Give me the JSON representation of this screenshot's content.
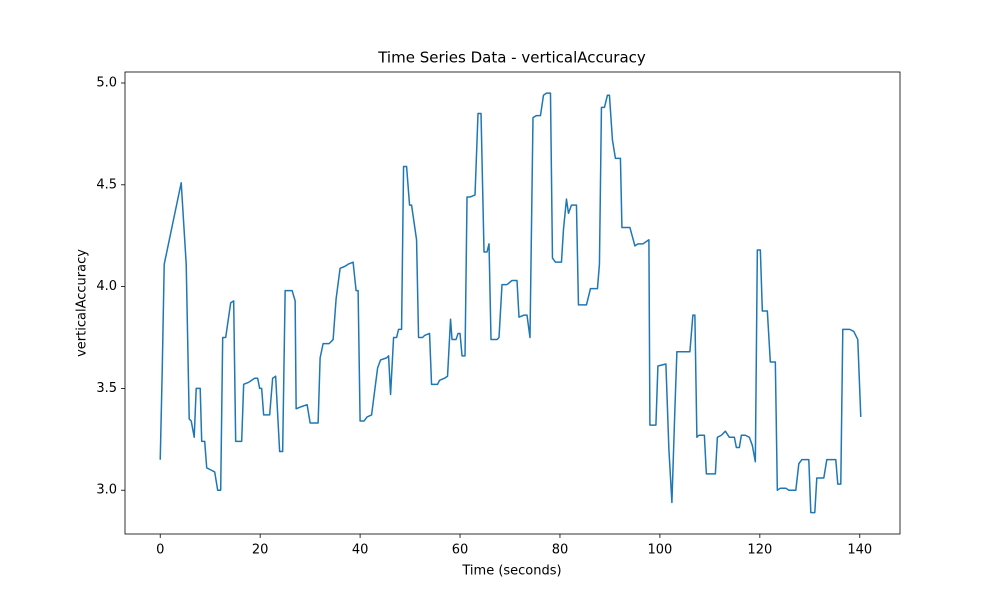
{
  "chart_data": {
    "type": "line",
    "title": "Time Series Data - verticalAccuracy",
    "xlabel": "Time (seconds)",
    "ylabel": "verticalAccuracy",
    "x": [
      0,
      0.4,
      0.8,
      4.2,
      5.2,
      5.8,
      6.2,
      6.8,
      7.2,
      8.0,
      8.3,
      8.9,
      9.3,
      10.1,
      10.9,
      11.5,
      12.1,
      12.5,
      13.1,
      14.1,
      14.7,
      15.1,
      16.3,
      16.7,
      17.7,
      18.3,
      18.9,
      19.5,
      19.9,
      20.3,
      20.7,
      21.9,
      22.5,
      23.1,
      23.9,
      24.5,
      25.0,
      25.8,
      26.4,
      27.0,
      27.2,
      28.2,
      29.4,
      30.0,
      31.6,
      32.0,
      32.6,
      33.8,
      34.6,
      35.2,
      36.0,
      37.0,
      37.6,
      38.6,
      39.2,
      39.6,
      40.0,
      40.8,
      41.4,
      42.3,
      43.5,
      44.1,
      45.3,
      45.7,
      46.1,
      46.7,
      47.3,
      47.7,
      48.3,
      48.7,
      49.3,
      49.9,
      50.3,
      51.3,
      51.7,
      52.5,
      52.9,
      53.9,
      54.3,
      55.5,
      55.9,
      56.9,
      57.5,
      58.1,
      58.4,
      59.2,
      59.6,
      60.0,
      60.4,
      61.0,
      61.4,
      62.0,
      63.0,
      63.6,
      64.2,
      64.8,
      65.4,
      65.8,
      66.2,
      67.4,
      67.8,
      68.4,
      69.4,
      70.4,
      71.4,
      71.8,
      72.8,
      73.4,
      74.0,
      74.6,
      75.3,
      76.1,
      76.7,
      77.3,
      78.1,
      78.5,
      79.1,
      80.3,
      80.7,
      81.3,
      81.7,
      82.3,
      83.3,
      83.7,
      85.3,
      86.1,
      86.7,
      87.5,
      87.9,
      88.3,
      88.9,
      89.5,
      89.9,
      90.5,
      91.1,
      92.1,
      92.4,
      93.0,
      94.0,
      95.0,
      95.6,
      96.6,
      97.8,
      98.0,
      99.2,
      99.6,
      101.2,
      101.8,
      102.4,
      103.0,
      103.4,
      106.0,
      106.6,
      107.0,
      107.4,
      107.8,
      108.9,
      109.3,
      111.1,
      111.5,
      112.3,
      113.1,
      113.9,
      114.9,
      115.3,
      115.9,
      116.3,
      117.1,
      117.9,
      118.5,
      119.1,
      119.5,
      120.1,
      120.5,
      121.5,
      122.1,
      123.1,
      123.5,
      124.1,
      125.2,
      125.8,
      127.2,
      127.8,
      128.4,
      129.8,
      130.2,
      131.0,
      131.4,
      132.8,
      133.4,
      135.2,
      135.6,
      136.2,
      136.6,
      138.0,
      138.8,
      139.6,
      140.2
    ],
    "series": [
      {
        "name": "verticalAccuracy",
        "color": "#1f77b4",
        "values": [
          3.15,
          3.59,
          4.11,
          4.51,
          4.11,
          3.35,
          3.34,
          3.26,
          3.5,
          3.5,
          3.24,
          3.24,
          3.11,
          3.1,
          3.09,
          3.0,
          3.0,
          3.75,
          3.75,
          3.92,
          3.93,
          3.24,
          3.24,
          3.52,
          3.53,
          3.54,
          3.55,
          3.55,
          3.5,
          3.5,
          3.37,
          3.37,
          3.55,
          3.56,
          3.19,
          3.19,
          3.98,
          3.98,
          3.98,
          3.93,
          3.4,
          3.41,
          3.42,
          3.33,
          3.33,
          3.65,
          3.72,
          3.72,
          3.74,
          3.94,
          4.09,
          4.1,
          4.11,
          4.12,
          3.98,
          3.98,
          3.34,
          3.34,
          3.36,
          3.37,
          3.6,
          3.64,
          3.65,
          3.66,
          3.47,
          3.75,
          3.75,
          3.79,
          3.79,
          4.59,
          4.59,
          4.4,
          4.4,
          4.23,
          3.75,
          3.75,
          3.76,
          3.77,
          3.52,
          3.52,
          3.54,
          3.55,
          3.56,
          3.84,
          3.74,
          3.74,
          3.77,
          3.77,
          3.66,
          3.66,
          4.44,
          4.44,
          4.45,
          4.85,
          4.85,
          4.17,
          4.17,
          4.21,
          3.74,
          3.74,
          3.75,
          4.01,
          4.01,
          4.03,
          4.03,
          3.85,
          3.86,
          3.86,
          3.75,
          4.83,
          4.84,
          4.84,
          4.94,
          4.95,
          4.95,
          4.14,
          4.12,
          4.12,
          4.28,
          4.43,
          4.36,
          4.4,
          4.4,
          3.91,
          3.91,
          3.99,
          3.99,
          3.99,
          4.11,
          4.88,
          4.88,
          4.94,
          4.94,
          4.72,
          4.63,
          4.63,
          4.29,
          4.29,
          4.29,
          4.2,
          4.21,
          4.21,
          4.23,
          3.32,
          3.32,
          3.61,
          3.62,
          3.2,
          2.94,
          3.4,
          3.68,
          3.68,
          3.86,
          3.86,
          3.26,
          3.27,
          3.27,
          3.08,
          3.08,
          3.26,
          3.27,
          3.29,
          3.26,
          3.26,
          3.21,
          3.21,
          3.27,
          3.27,
          3.26,
          3.22,
          3.14,
          4.18,
          4.18,
          3.88,
          3.88,
          3.63,
          3.63,
          3.0,
          3.01,
          3.01,
          3.0,
          3.0,
          3.13,
          3.15,
          3.15,
          2.89,
          2.89,
          3.06,
          3.06,
          3.15,
          3.15,
          3.03,
          3.03,
          3.79,
          3.79,
          3.78,
          3.74,
          3.36
        ]
      }
    ],
    "xlim": [
      -7.05,
      148.05
    ],
    "xticks": [
      0,
      20,
      40,
      60,
      80,
      100,
      120,
      140
    ],
    "ylim": [
      2.785,
      5.054
    ],
    "yticks": [
      {
        "value": 3.0,
        "label": "3.0"
      },
      {
        "value": 3.5,
        "label": "3.5"
      },
      {
        "value": 4.0,
        "label": "4.0"
      },
      {
        "value": 4.5,
        "label": "4.5"
      },
      {
        "value": 5.0,
        "label": "5.0"
      }
    ],
    "grid": false
  }
}
